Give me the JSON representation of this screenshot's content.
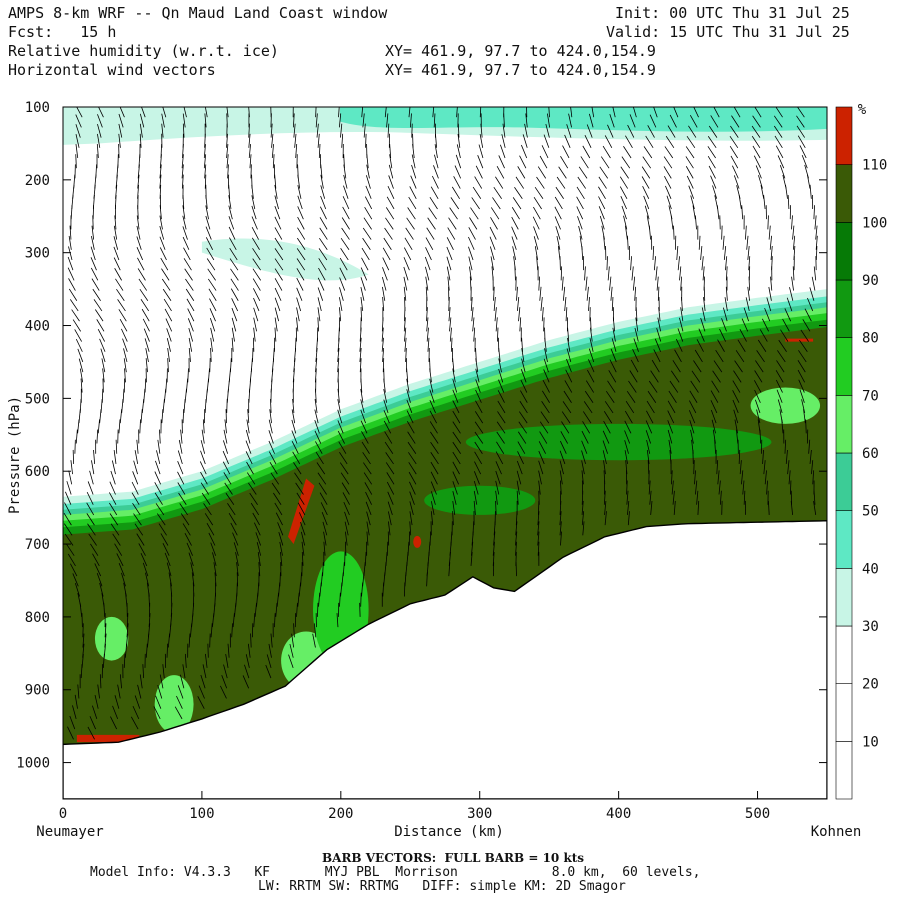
{
  "header": {
    "title": "AMPS 8-km WRF -- Qn Maud Land Coast window",
    "fcst": "Fcst:   15 h",
    "init": "Init: 00 UTC Thu 31 Jul 25",
    "valid": "Valid: 15 UTC Thu 31 Jul 25",
    "field1": "Relative humidity (w.r.t. ice)",
    "field2": "Horizontal wind vectors",
    "xy1": "XY= 461.9, 97.7 to 424.0,154.9",
    "xy2": "XY= 461.9, 97.7 to 424.0,154.9"
  },
  "chart_data": {
    "type": "heatmap",
    "title": "",
    "xlabel": "Distance (km)",
    "ylabel": "Pressure (hPa)",
    "xlim": [
      0,
      550
    ],
    "ylim": [
      1050,
      100
    ],
    "x_ticks": [
      0,
      100,
      200,
      300,
      400,
      500
    ],
    "y_ticks": [
      100,
      200,
      300,
      400,
      500,
      600,
      700,
      800,
      900,
      1000
    ],
    "x_endpoints": {
      "left": "Neumayer",
      "right": "Kohnen"
    },
    "colorbar": {
      "unit": "%",
      "levels": [
        10,
        20,
        30,
        40,
        50,
        60,
        70,
        80,
        90,
        100,
        110
      ],
      "colors": [
        "#ffffff",
        "#ffffff",
        "#ffffff",
        "#c8f5e6",
        "#5ee8c4",
        "#3ccc96",
        "#66ee66",
        "#22cc22",
        "#119911",
        "#067a06",
        "#3a5a06",
        "#cc2200"
      ]
    },
    "terrain_surface_hpa": [
      {
        "x": 0,
        "p": 975
      },
      {
        "x": 40,
        "p": 972
      },
      {
        "x": 70,
        "p": 958
      },
      {
        "x": 100,
        "p": 940
      },
      {
        "x": 130,
        "p": 920
      },
      {
        "x": 160,
        "p": 895
      },
      {
        "x": 190,
        "p": 845
      },
      {
        "x": 220,
        "p": 810
      },
      {
        "x": 250,
        "p": 782
      },
      {
        "x": 275,
        "p": 770
      },
      {
        "x": 295,
        "p": 745
      },
      {
        "x": 310,
        "p": 760
      },
      {
        "x": 325,
        "p": 765
      },
      {
        "x": 340,
        "p": 745
      },
      {
        "x": 360,
        "p": 718
      },
      {
        "x": 390,
        "p": 690
      },
      {
        "x": 420,
        "p": 676
      },
      {
        "x": 450,
        "p": 672
      },
      {
        "x": 550,
        "p": 668
      }
    ],
    "moist_layer_top_hpa": [
      {
        "x": 0,
        "p": 665
      },
      {
        "x": 50,
        "p": 658
      },
      {
        "x": 100,
        "p": 630
      },
      {
        "x": 150,
        "p": 590
      },
      {
        "x": 200,
        "p": 545
      },
      {
        "x": 250,
        "p": 510
      },
      {
        "x": 300,
        "p": 480
      },
      {
        "x": 350,
        "p": 450
      },
      {
        "x": 400,
        "p": 425
      },
      {
        "x": 450,
        "p": 405
      },
      {
        "x": 500,
        "p": 392
      },
      {
        "x": 550,
        "p": 380
      }
    ],
    "humid_band_top": {
      "p_top": 100,
      "p_bottom": 150,
      "value": 40
    },
    "humid_band_mid": {
      "x": [
        100,
        220
      ],
      "p": [
        280,
        340
      ],
      "value": 30
    },
    "wind_barbs": {
      "unit": "kts",
      "full_barb": 10
    }
  },
  "footer": {
    "barb_note": "BARB VECTORS:  FULL BARB = 10 kts",
    "model_line1": "Model Info: V4.3.3   KF       MYJ PBL  Morrison            8.0 km,  60 levels,",
    "model_line2": "LW: RRTM SW: RRTMG   DIFF: simple KM: 2D Smagor"
  }
}
